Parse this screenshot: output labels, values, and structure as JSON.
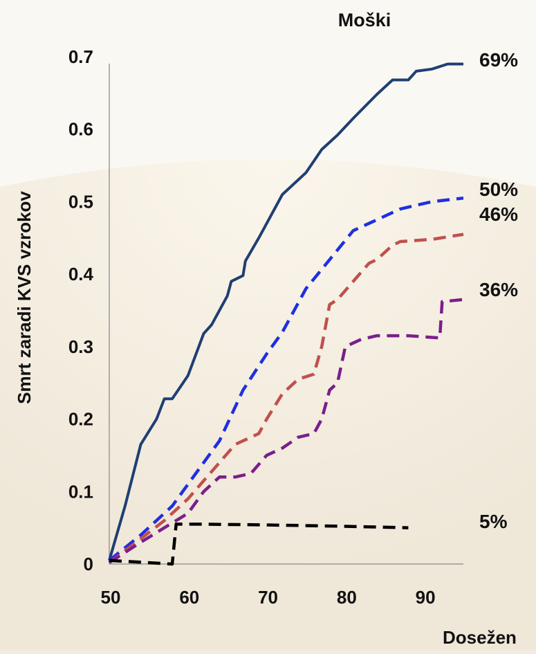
{
  "chart_data": {
    "type": "line",
    "title": "Moški",
    "xlabel": "Dosežen",
    "ylabel": "Smrt zaradi KVS vzrokov",
    "xlim": [
      50,
      95
    ],
    "ylim": [
      0,
      0.7
    ],
    "x_ticks": [
      "50",
      "60",
      "70",
      "80",
      "90"
    ],
    "y_ticks": [
      "0",
      "0.1",
      "0.2",
      "0.3",
      "0.4",
      "0.5",
      "0.6",
      "0.7"
    ],
    "grid": false,
    "series": [
      {
        "end_label": "69%",
        "color": "#1f3f73",
        "style": "solid",
        "points": [
          [
            50,
            0.005
          ],
          [
            52,
            0.08
          ],
          [
            54,
            0.165
          ],
          [
            56,
            0.2
          ],
          [
            57,
            0.228
          ],
          [
            58,
            0.228
          ],
          [
            60,
            0.26
          ],
          [
            62,
            0.318
          ],
          [
            63,
            0.33
          ],
          [
            65,
            0.37
          ],
          [
            65.5,
            0.39
          ],
          [
            67,
            0.398
          ],
          [
            67.3,
            0.418
          ],
          [
            69,
            0.45
          ],
          [
            72,
            0.51
          ],
          [
            73,
            0.52
          ],
          [
            75,
            0.54
          ],
          [
            77,
            0.572
          ],
          [
            79,
            0.592
          ],
          [
            81,
            0.615
          ],
          [
            84,
            0.648
          ],
          [
            86,
            0.668
          ],
          [
            88,
            0.668
          ],
          [
            89,
            0.68
          ],
          [
            91,
            0.683
          ],
          [
            93,
            0.69
          ],
          [
            95,
            0.69
          ]
        ]
      },
      {
        "end_label": "50%",
        "color": "#1f2fe0",
        "style": "dashed",
        "points": [
          [
            50,
            0.005
          ],
          [
            54,
            0.04
          ],
          [
            58,
            0.08
          ],
          [
            62,
            0.14
          ],
          [
            64,
            0.17
          ],
          [
            67,
            0.24
          ],
          [
            70,
            0.29
          ],
          [
            72,
            0.32
          ],
          [
            75,
            0.38
          ],
          [
            78,
            0.42
          ],
          [
            81,
            0.46
          ],
          [
            84,
            0.475
          ],
          [
            87,
            0.49
          ],
          [
            91,
            0.5
          ],
          [
            95,
            0.505
          ]
        ]
      },
      {
        "end_label": "46%",
        "color": "#c0504d",
        "style": "dashed",
        "points": [
          [
            50,
            0.002
          ],
          [
            54,
            0.035
          ],
          [
            57,
            0.06
          ],
          [
            60,
            0.09
          ],
          [
            62,
            0.115
          ],
          [
            64,
            0.14
          ],
          [
            66,
            0.165
          ],
          [
            68,
            0.175
          ],
          [
            69,
            0.18
          ],
          [
            70,
            0.2
          ],
          [
            72,
            0.235
          ],
          [
            74,
            0.255
          ],
          [
            76,
            0.262
          ],
          [
            77,
            0.3
          ],
          [
            78,
            0.358
          ],
          [
            79,
            0.365
          ],
          [
            81,
            0.39
          ],
          [
            83,
            0.415
          ],
          [
            84,
            0.42
          ],
          [
            86,
            0.44
          ],
          [
            87,
            0.445
          ],
          [
            91,
            0.448
          ],
          [
            95,
            0.455
          ]
        ]
      },
      {
        "end_label": "36%",
        "color": "#7a1f8a",
        "style": "dashed",
        "points": [
          [
            50,
            0.002
          ],
          [
            54,
            0.03
          ],
          [
            57,
            0.05
          ],
          [
            60,
            0.07
          ],
          [
            62,
            0.1
          ],
          [
            64,
            0.12
          ],
          [
            66,
            0.12
          ],
          [
            68,
            0.125
          ],
          [
            70,
            0.15
          ],
          [
            72,
            0.16
          ],
          [
            74,
            0.175
          ],
          [
            76,
            0.18
          ],
          [
            77,
            0.2
          ],
          [
            78,
            0.24
          ],
          [
            79,
            0.25
          ],
          [
            80,
            0.3
          ],
          [
            82,
            0.31
          ],
          [
            84,
            0.315
          ],
          [
            88,
            0.315
          ],
          [
            92,
            0.312
          ],
          [
            92.3,
            0.362
          ],
          [
            95,
            0.365
          ]
        ]
      },
      {
        "end_label": "5%",
        "color": "#000000",
        "style": "dashed",
        "points": [
          [
            50,
            0.005
          ],
          [
            58,
            0
          ],
          [
            58.5,
            0.055
          ],
          [
            62,
            0.055
          ],
          [
            70,
            0.054
          ],
          [
            80,
            0.052
          ],
          [
            88,
            0.05
          ]
        ]
      }
    ]
  }
}
